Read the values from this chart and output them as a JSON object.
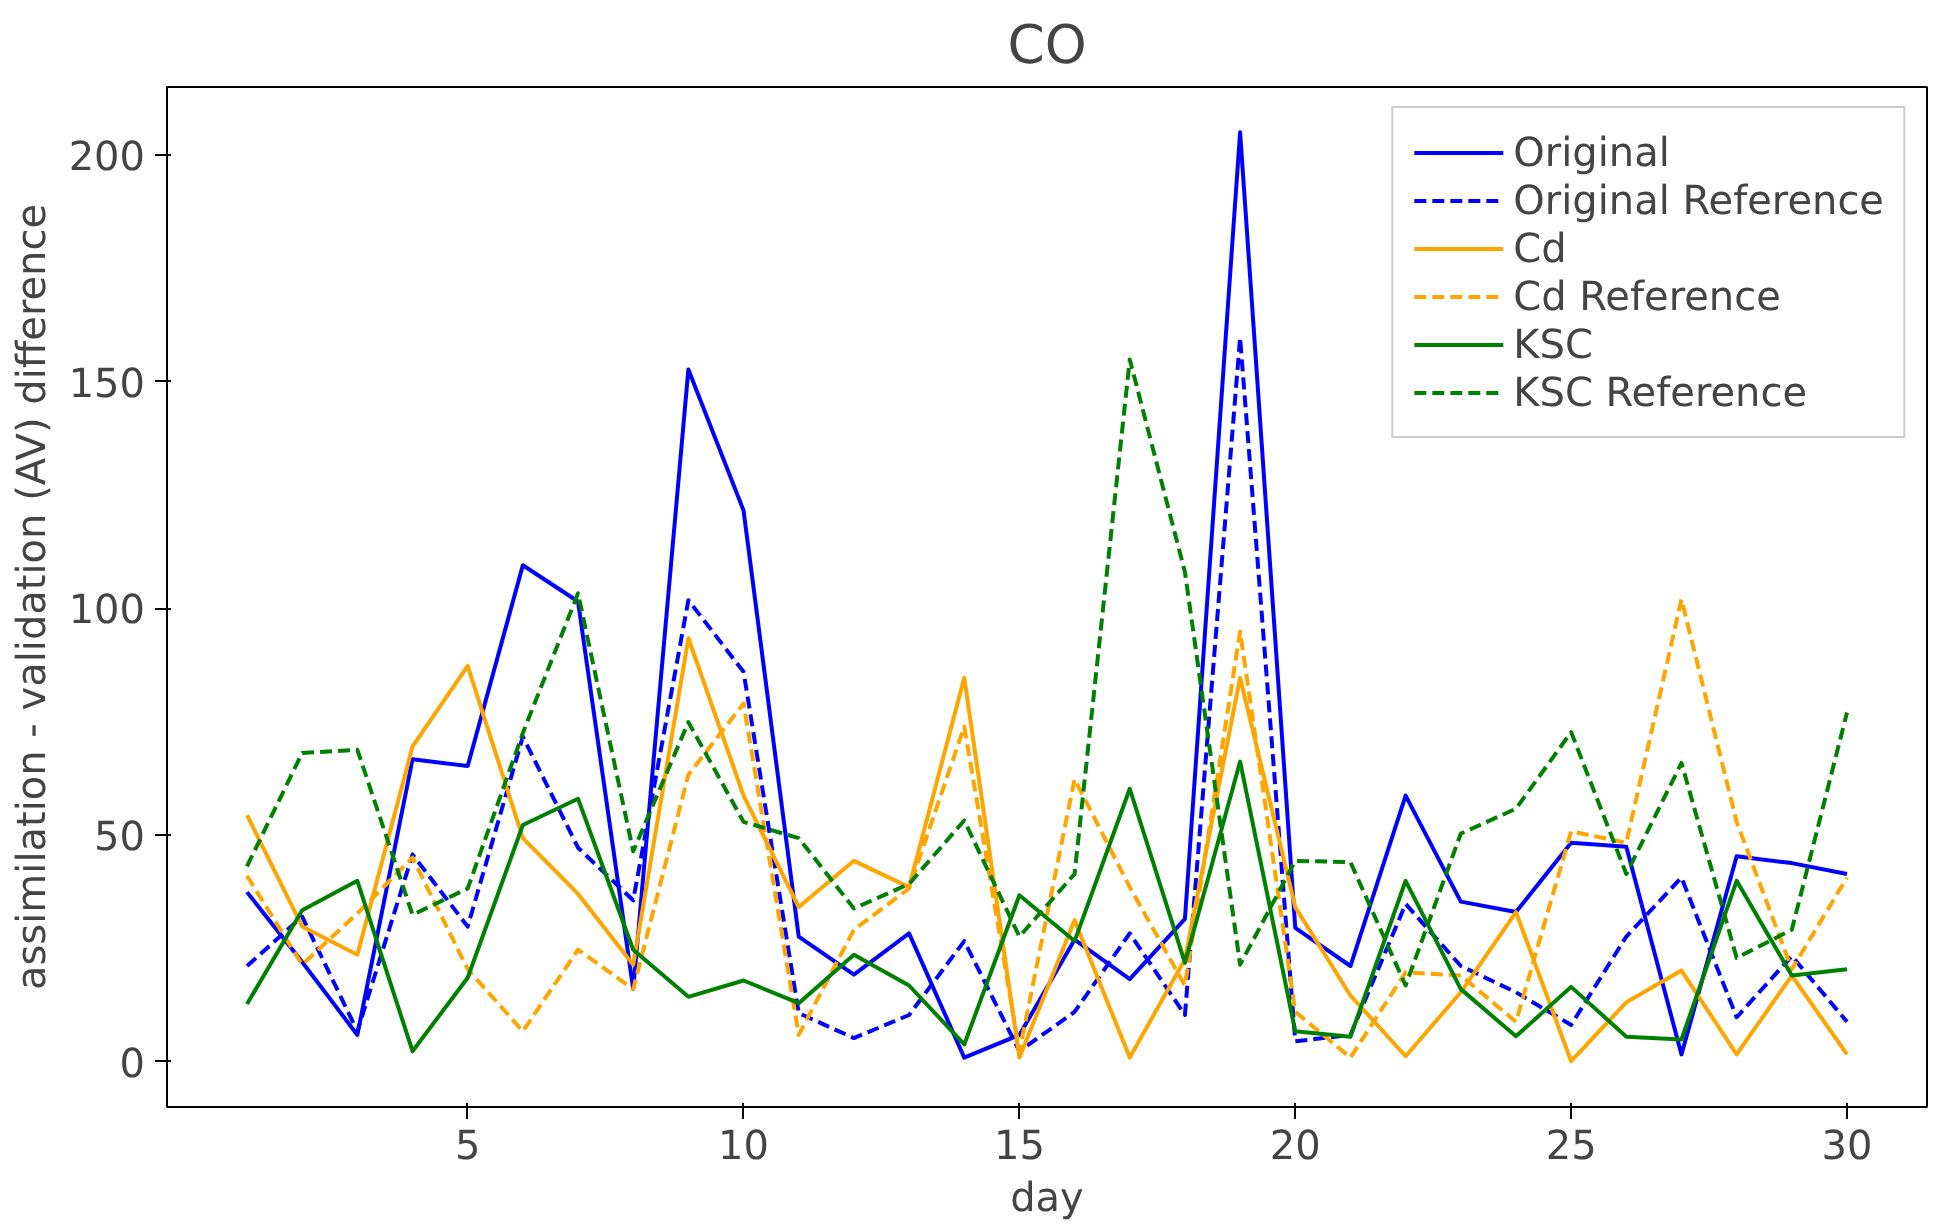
{
  "chart_data": {
    "type": "line",
    "title": "CO",
    "xlabel": "day",
    "ylabel": "assimilation - validation (AV) difference",
    "x": [
      1,
      2,
      3,
      4,
      5,
      6,
      7,
      8,
      9,
      10,
      11,
      12,
      13,
      14,
      15,
      16,
      17,
      18,
      19,
      20,
      21,
      22,
      23,
      24,
      25,
      26,
      27,
      28,
      29,
      30
    ],
    "xlim": [
      -0.45,
      31.45
    ],
    "xticks": [
      5,
      10,
      15,
      20,
      25,
      30
    ],
    "ylim": [
      -10,
      215
    ],
    "yticks": [
      0,
      50,
      100,
      150,
      200
    ],
    "grid": false,
    "legend": "top right",
    "marker": "none",
    "series": [
      {
        "name": "Original",
        "color": "#0000ff",
        "line_style": "solid",
        "values": [
          37.4,
          22,
          5.9,
          66.7,
          65.2,
          109.5,
          101.5,
          16,
          152.7,
          121.6,
          27.6,
          19.2,
          28.3,
          0.9,
          5.9,
          26.9,
          18.2,
          31.5,
          205,
          29.5,
          21.1,
          58.7,
          35.3,
          33,
          48.3,
          47.4,
          1.6,
          45.3,
          43.8,
          41.4
        ]
      },
      {
        "name": "Original Reference",
        "color": "#0000ff",
        "line_style": "dashed",
        "values": [
          21.1,
          32,
          6.7,
          45.7,
          29.8,
          71.7,
          47.2,
          35.6,
          101.8,
          86,
          10.7,
          5.2,
          10.3,
          26.6,
          2.3,
          11,
          28.3,
          10.3,
          159.7,
          4.5,
          5.9,
          34.8,
          21.1,
          15.3,
          8.1,
          27.6,
          40.6,
          9.8,
          23.3,
          8.8
        ]
      },
      {
        "name": "Cd",
        "color": "#ffa500",
        "line_style": "solid",
        "values": [
          54.4,
          29.8,
          23.6,
          69.5,
          87.3,
          49.3,
          37,
          21.4,
          93.4,
          58.7,
          34.1,
          44.3,
          38.5,
          84.7,
          0.9,
          31.2,
          0.9,
          22.6,
          84.7,
          34.1,
          14.6,
          1.2,
          15.3,
          33,
          0.1,
          13.1,
          20.1,
          1.6,
          19,
          1.6
        ]
      },
      {
        "name": "Cd Reference",
        "color": "#ffa500",
        "line_style": "dashed",
        "values": [
          41,
          21.4,
          32.7,
          45,
          20.4,
          6.7,
          24.7,
          16,
          63.3,
          79,
          5.9,
          29.1,
          38.2,
          73.9,
          2.3,
          62.3,
          38.5,
          16.8,
          94.9,
          11,
          0.9,
          19.7,
          19,
          8.8,
          50.8,
          48.3,
          102,
          52.9,
          20.4,
          40.6
        ]
      },
      {
        "name": "KSC",
        "color": "#008000",
        "line_style": "solid",
        "values": [
          12.7,
          33.4,
          39.9,
          2.3,
          18.5,
          52.2,
          58,
          24.7,
          14.3,
          17.9,
          12.9,
          23.6,
          16.8,
          3.8,
          36.7,
          26.6,
          60.2,
          21.8,
          66.2,
          6.7,
          5.5,
          39.9,
          16,
          5.6,
          16.5,
          5.5,
          4.9,
          39.9,
          19,
          20.4
        ]
      },
      {
        "name": "KSC Reference",
        "color": "#008000",
        "line_style": "dashed",
        "values": [
          43.1,
          68.1,
          68.8,
          32.4,
          38.2,
          72.5,
          103.3,
          46.4,
          74.9,
          52.9,
          49.3,
          33.8,
          39.2,
          53.2,
          27.6,
          41.4,
          154.9,
          108,
          21.4,
          44.3,
          44,
          16.8,
          50.3,
          55.8,
          72.7,
          41.4,
          65.9,
          22.9,
          29.1,
          77
        ]
      }
    ]
  }
}
